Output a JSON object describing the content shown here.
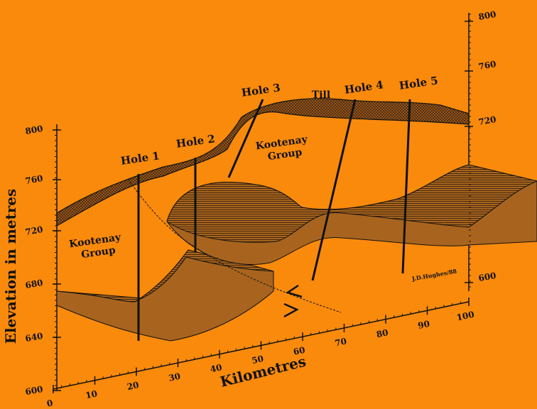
{
  "left_axis": {
    "title": "Elevation in metres",
    "ticks": [
      "600",
      "640",
      "680",
      "720",
      "760",
      "800"
    ]
  },
  "right_axis": {
    "ticks": [
      "800",
      "760",
      "720",
      "600"
    ]
  },
  "bottom_axis": {
    "title": "Kilometres",
    "ticks": [
      "0",
      "10",
      "20",
      "30",
      "40",
      "50",
      "60",
      "70",
      "80",
      "90",
      "100"
    ]
  },
  "holes": [
    "Hole 1",
    "Hole 2",
    "Hole 3",
    "Hole 4",
    "Hole 5"
  ],
  "labels": {
    "till": "Till",
    "kootenay_upper": [
      "Kootenay",
      "Group"
    ],
    "kootenay_lower": [
      "Kootenay",
      "Group"
    ],
    "credit": "J.D.Hughes/88"
  }
}
